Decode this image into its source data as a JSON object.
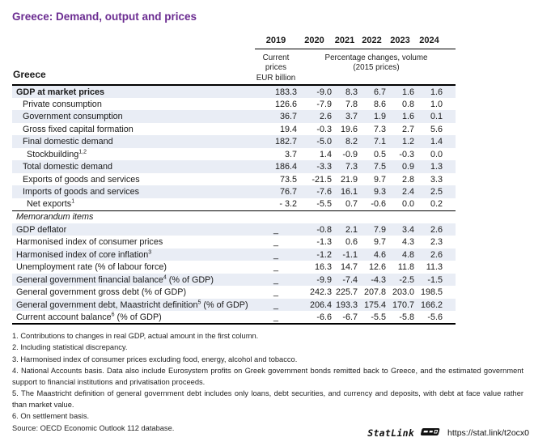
{
  "page": {
    "title": "Greece: Demand, output and prices"
  },
  "colors": {
    "title_purple": "#6b2c91",
    "row_shade": "#e9edf5",
    "rule": "#000000"
  },
  "table": {
    "country_label": "Greece",
    "years": [
      "2019",
      "2020",
      "2021",
      "2022",
      "2023",
      "2024"
    ],
    "col2019_subheader": [
      "Current prices",
      "EUR billion"
    ],
    "volume_subheader": [
      "Percentage changes, volume",
      "(2015 prices)"
    ],
    "rows": [
      {
        "label": "GDP at market prices",
        "bold": true,
        "indent": 0,
        "shaded": true,
        "values": [
          "183.3",
          "-9.0",
          "8.3",
          "6.7",
          "1.6",
          "1.6"
        ]
      },
      {
        "label": "Private consumption",
        "indent": 1,
        "values": [
          "126.6",
          "-7.9",
          "7.8",
          "8.6",
          "0.8",
          "1.0"
        ]
      },
      {
        "label": "Government consumption",
        "indent": 1,
        "shaded": true,
        "values": [
          "36.7",
          "2.6",
          "3.7",
          "1.9",
          "1.6",
          "0.1"
        ]
      },
      {
        "label": "Gross fixed capital formation",
        "indent": 1,
        "values": [
          "19.4",
          "-0.3",
          "19.6",
          "7.3",
          "2.7",
          "5.6"
        ]
      },
      {
        "label": "Final domestic demand",
        "indent": 1,
        "shaded": true,
        "values": [
          "182.7",
          "-5.0",
          "8.2",
          "7.1",
          "1.2",
          "1.4"
        ]
      },
      {
        "label": "Stockbuilding",
        "sup": "1,2",
        "indent": 2,
        "values": [
          "3.7",
          "1.4",
          "-0.9",
          "0.5",
          "-0.3",
          "0.0"
        ]
      },
      {
        "label": "Total domestic demand",
        "indent": 1,
        "shaded": true,
        "values": [
          "186.4",
          "-3.3",
          "7.3",
          "7.5",
          "0.9",
          "1.3"
        ]
      },
      {
        "label": "Exports of goods and services",
        "indent": 1,
        "values": [
          "73.5",
          "-21.5",
          "21.9",
          "9.7",
          "2.8",
          "3.3"
        ]
      },
      {
        "label": "Imports of goods and services",
        "indent": 1,
        "shaded": true,
        "values": [
          "76.7",
          "-7.6",
          "16.1",
          "9.3",
          "2.4",
          "2.5"
        ]
      },
      {
        "label": "Net exports",
        "sup": "1",
        "indent": 2,
        "values": [
          "- 3.2",
          "-5.5",
          "0.7",
          "-0.6",
          "0.0",
          "0.2"
        ]
      },
      {
        "label": "Memorandum items",
        "italic": true,
        "indent": 0,
        "divider": true,
        "values": [
          "",
          "",
          "",
          "",
          "",
          ""
        ]
      },
      {
        "label": "GDP deflator",
        "indent": 0,
        "shaded": true,
        "values": [
          "_",
          "-0.8",
          "2.1",
          "7.9",
          "3.4",
          "2.6"
        ]
      },
      {
        "label": "Harmonised index of consumer prices",
        "indent": 0,
        "values": [
          "_",
          "-1.3",
          "0.6",
          "9.7",
          "4.3",
          "2.3"
        ]
      },
      {
        "label": "Harmonised index of core inflation",
        "sup": "3",
        "indent": 0,
        "shaded": true,
        "values": [
          "_",
          "-1.2",
          "-1.1",
          "4.6",
          "4.8",
          "2.6"
        ]
      },
      {
        "label": "Unemployment rate (% of labour force)",
        "indent": 0,
        "values": [
          "_",
          "16.3",
          "14.7",
          "12.6",
          "11.8",
          "11.3"
        ]
      },
      {
        "label": "General government financial balance",
        "sup": "4",
        "suffix": " (% of GDP)",
        "indent": 0,
        "shaded": true,
        "values": [
          "_",
          "-9.9",
          "-7.4",
          "-4.3",
          "-2.5",
          "-1.5"
        ]
      },
      {
        "label": "General government gross debt (% of GDP)",
        "indent": 0,
        "values": [
          "_",
          "242.3",
          "225.7",
          "207.8",
          "203.0",
          "198.5"
        ]
      },
      {
        "label": "General government debt, Maastricht definition",
        "sup": "5",
        "suffix": " (% of GDP)",
        "indent": 0,
        "shaded": true,
        "values": [
          "_",
          "206.4",
          "193.3",
          "175.4",
          "170.7",
          "166.2"
        ]
      },
      {
        "label": "Current account balance",
        "sup": "6",
        "suffix": " (% of GDP)",
        "indent": 0,
        "values": [
          "_",
          "-6.6",
          "-6.7",
          "-5.5",
          "-5.8",
          "-5.6"
        ]
      }
    ]
  },
  "footnotes": [
    "1. Contributions to changes in real GDP, actual amount in the first column.",
    "2. Including statistical discrepancy.",
    "3. Harmonised index of consumer prices excluding food, energy, alcohol and tobacco.",
    "4. National Accounts basis. Data also include Eurosystem profits on Greek government bonds remitted back to Greece, and the estimated government support to financial institutions and privatisation proceeds.",
    "5. The Maastricht definition of general government debt includes only loans, debt securities, and currency and deposits, with debt at face value rather than market value.",
    "6. On settlement basis."
  ],
  "source": "Source: OECD Economic Outlook 112 database.",
  "statlink": {
    "label": "StatLink",
    "icon": "statlink-download-icon",
    "url": "https://stat.link/t2ocx0"
  }
}
